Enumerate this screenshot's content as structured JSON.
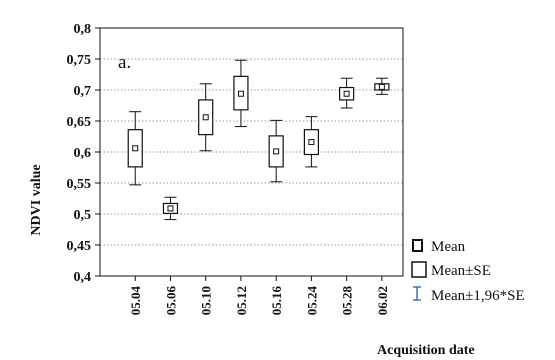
{
  "chart_data": {
    "type": "box",
    "panel_label": "a.",
    "ylabel": "NDVI value",
    "xlabel": "Acquisition date",
    "ylim": [
      0.4,
      0.8
    ],
    "yticks": [
      {
        "value": 0.4,
        "label": "0,4"
      },
      {
        "value": 0.45,
        "label": "0,45"
      },
      {
        "value": 0.5,
        "label": "0,5"
      },
      {
        "value": 0.55,
        "label": "0,55"
      },
      {
        "value": 0.6,
        "label": "0,6"
      },
      {
        "value": 0.65,
        "label": "0,65"
      },
      {
        "value": 0.7,
        "label": "0,7"
      },
      {
        "value": 0.75,
        "label": "0,75"
      },
      {
        "value": 0.8,
        "label": "0,8"
      }
    ],
    "grid": "horizontal dotted",
    "categories": [
      "05.04",
      "05.06",
      "05.10",
      "05.12",
      "05.16",
      "05.24",
      "05.28",
      "06.02"
    ],
    "mean": [
      0.606,
      0.509,
      0.656,
      0.694,
      0.601,
      0.616,
      0.694,
      0.705
    ],
    "se_low": [
      0.576,
      0.501,
      0.628,
      0.668,
      0.576,
      0.596,
      0.684,
      0.7
    ],
    "se_high": [
      0.636,
      0.517,
      0.684,
      0.722,
      0.626,
      0.636,
      0.704,
      0.71
    ],
    "ci_low": [
      0.547,
      0.491,
      0.602,
      0.641,
      0.552,
      0.576,
      0.671,
      0.693
    ],
    "ci_high": [
      0.665,
      0.527,
      0.71,
      0.748,
      0.651,
      0.657,
      0.719,
      0.719
    ],
    "legend": {
      "position": "bottom-right",
      "items": [
        {
          "symbol": "mean",
          "label": "Mean"
        },
        {
          "symbol": "se-box",
          "label": "Mean±SE"
        },
        {
          "symbol": "whisker",
          "label": "Mean±1,96*SE"
        }
      ]
    },
    "colors": {
      "box": "#111111",
      "grid": "#9a9a9a",
      "legend_whisker": "#3a6fc4"
    }
  }
}
